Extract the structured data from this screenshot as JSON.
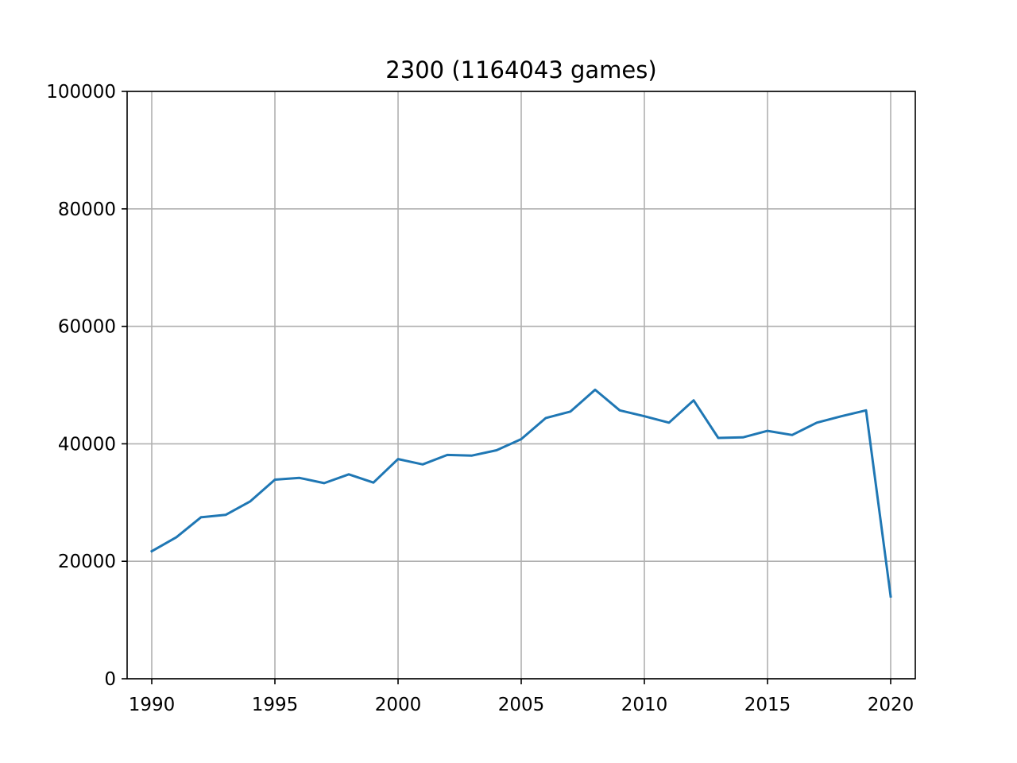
{
  "chart_data": {
    "type": "line",
    "title": "2300 (1164043 games)",
    "xlabel": "",
    "ylabel": "",
    "xlim": [
      1989,
      2021
    ],
    "ylim": [
      0,
      100000
    ],
    "grid": true,
    "x_ticks": [
      1990,
      1995,
      2000,
      2005,
      2010,
      2015,
      2020
    ],
    "y_ticks": [
      0,
      20000,
      40000,
      60000,
      80000,
      100000
    ],
    "x_tick_labels": [
      "1990",
      "1995",
      "2000",
      "2005",
      "2010",
      "2015",
      "2020"
    ],
    "y_tick_labels": [
      "0",
      "20000",
      "40000",
      "60000",
      "80000",
      "100000"
    ],
    "series": [
      {
        "color": "#1f77b4",
        "x": [
          1990,
          1991,
          1992,
          1993,
          1994,
          1995,
          1996,
          1997,
          1998,
          1999,
          2000,
          2001,
          2002,
          2003,
          2004,
          2005,
          2006,
          2007,
          2008,
          2009,
          2010,
          2011,
          2012,
          2013,
          2014,
          2015,
          2016,
          2017,
          2018,
          2019,
          2020
        ],
        "values": [
          21700,
          24100,
          27500,
          27900,
          30200,
          33900,
          34200,
          33300,
          34800,
          33400,
          37400,
          36500,
          38100,
          38000,
          38900,
          40800,
          44400,
          45500,
          49200,
          45700,
          44700,
          43600,
          47400,
          41000,
          41100,
          42200,
          41500,
          43600,
          44700,
          45700,
          14000
        ]
      }
    ]
  }
}
